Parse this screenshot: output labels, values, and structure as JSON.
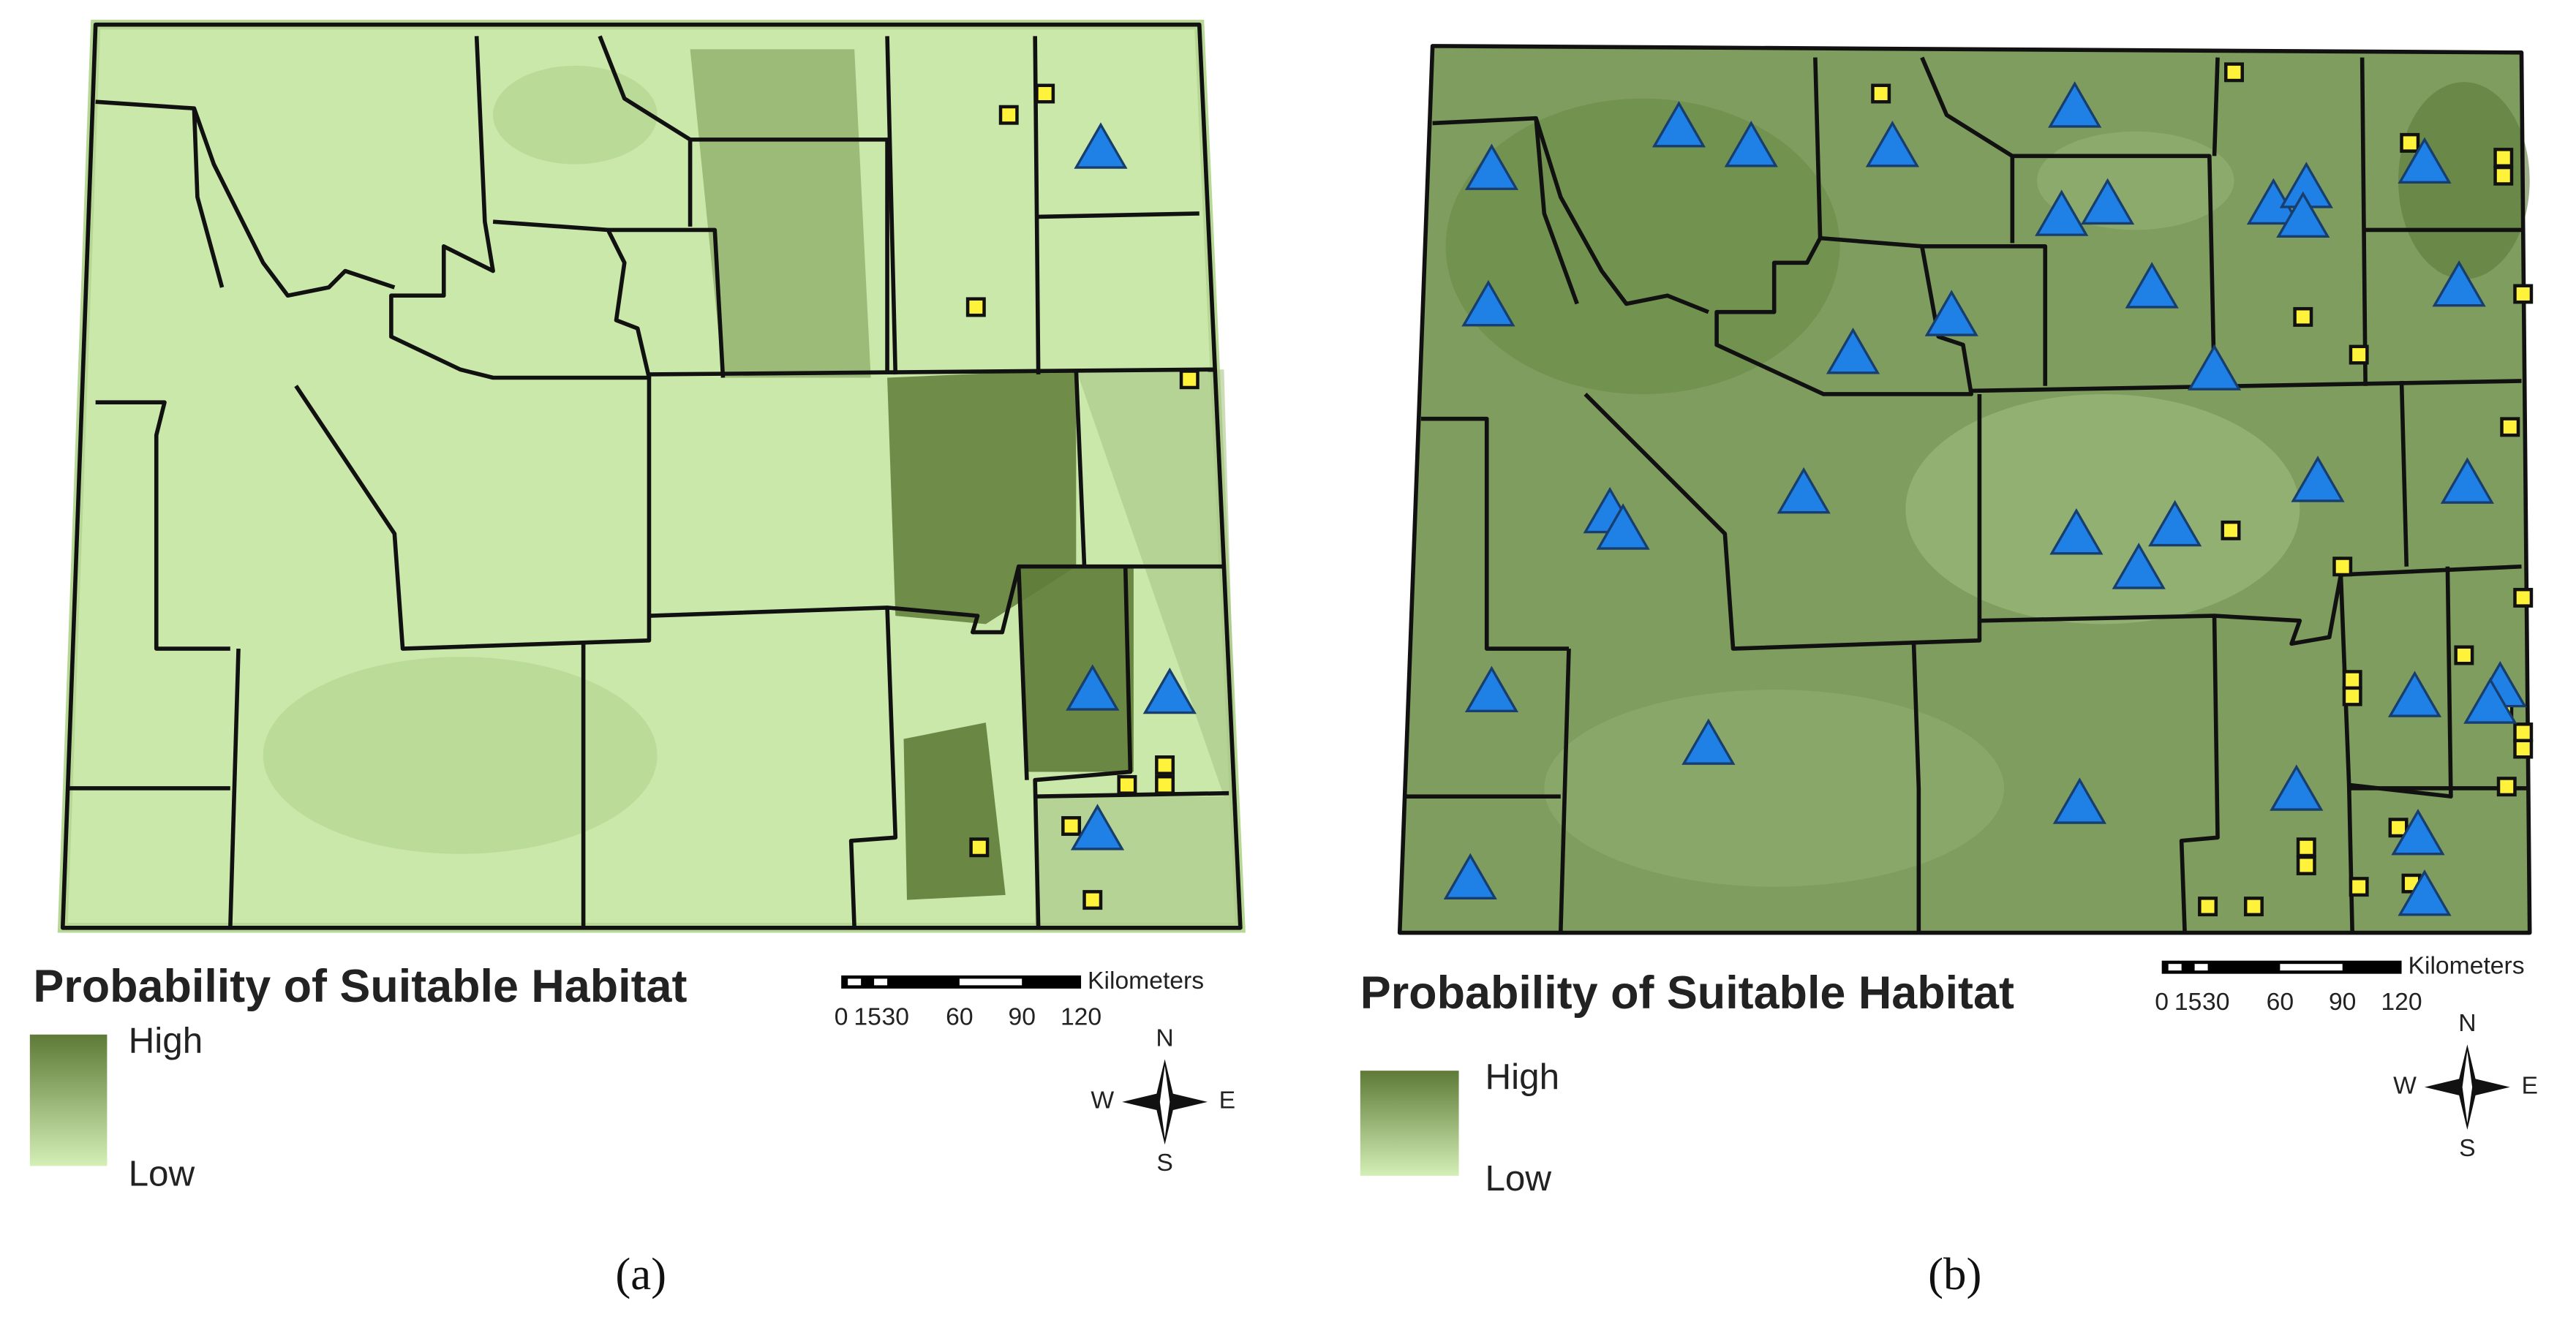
{
  "panels": [
    {
      "legend_title": "Probability of Suitable Habitat",
      "legend_high": "High",
      "legend_low": "Low",
      "scale_labels": [
        "0",
        "15",
        "30",
        "60",
        "90",
        "120"
      ],
      "scale_unit": "Kilometers",
      "compass": {
        "n": "N",
        "e": "E",
        "s": "S",
        "w": "W"
      },
      "caption": "(a)"
    },
    {
      "legend_title": "Probability of Suitable Habitat",
      "legend_high": "High",
      "legend_low": "Low",
      "scale_labels": [
        "0",
        "15",
        "30",
        "60",
        "90",
        "120"
      ],
      "scale_unit": "Kilometers",
      "compass": {
        "n": "N",
        "e": "E",
        "s": "S",
        "w": "W"
      },
      "caption": "(b)"
    }
  ]
}
